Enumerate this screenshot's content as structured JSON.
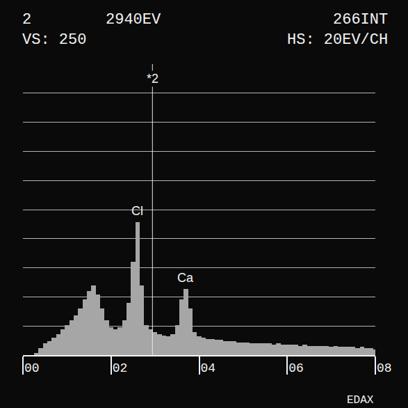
{
  "chart_data": {
    "type": "bar",
    "header": [
      [
        "2",
        "2940EV",
        "266INT"
      ],
      [
        "VS: 250",
        "HS: 20EV/CH"
      ]
    ],
    "footer": "EDAX",
    "x": [
      0,
      0.1,
      0.2,
      0.3,
      0.4,
      0.5,
      0.6,
      0.7,
      0.8,
      0.9,
      1,
      1.1,
      1.2,
      1.3,
      1.4,
      1.5,
      1.6,
      1.7,
      1.8,
      1.9,
      2,
      2.1,
      2.2,
      2.3,
      2.4,
      2.5,
      2.6,
      2.7,
      2.8,
      2.9,
      3,
      3.1,
      3.2,
      3.3,
      3.4,
      3.5,
      3.6,
      3.7,
      3.8,
      3.9,
      4,
      4.1,
      4.2,
      4.3,
      4.4,
      4.5,
      4.6,
      4.7,
      4.8,
      4.9,
      5,
      5.1,
      5.2,
      5.3,
      5.4,
      5.5,
      5.6,
      5.7,
      5.8,
      5.9,
      6,
      6.1,
      6.2,
      6.3,
      6.4,
      6.5,
      6.6,
      6.7,
      6.8,
      6.9,
      7,
      7.1,
      7.2,
      7.3,
      7.4,
      7.5,
      7.6,
      7.7,
      7.8,
      7.9,
      8
    ],
    "values": [
      0,
      0,
      0,
      2,
      6,
      10,
      12,
      15,
      18,
      22,
      26,
      30,
      34,
      40,
      48,
      55,
      60,
      52,
      40,
      30,
      24,
      22,
      24,
      30,
      45,
      80,
      114,
      60,
      26,
      22,
      20,
      18,
      17,
      16,
      18,
      26,
      48,
      57,
      40,
      20,
      16,
      15,
      14,
      14,
      13,
      13,
      12,
      12,
      12,
      11,
      11,
      11,
      10,
      10,
      10,
      10,
      10,
      9,
      10,
      9,
      9,
      9,
      9,
      8,
      9,
      8,
      8,
      8,
      8,
      8,
      7,
      8,
      7,
      7,
      7,
      7,
      6,
      7,
      6,
      6,
      5
    ],
    "color": "#a6a6a6",
    "xlim": [
      0,
      8
    ],
    "xticks": [
      {
        "value": 0,
        "label": "00"
      },
      {
        "value": 2,
        "label": "02"
      },
      {
        "value": 4,
        "label": "04"
      },
      {
        "value": 6,
        "label": "06"
      },
      {
        "value": 8,
        "label": "08"
      }
    ],
    "ylim": [
      0,
      250
    ],
    "yticks": [
      0,
      25,
      50,
      75,
      100,
      125,
      150,
      175,
      200,
      225,
      250
    ],
    "grid": true,
    "tick_labels": "x",
    "cursor": {
      "x": 2.94,
      "label": "*2"
    },
    "annotations": [
      {
        "text": "Cl",
        "x": 2.6,
        "y": 114
      },
      {
        "text": "Ca",
        "x": 3.7,
        "y": 57
      }
    ]
  }
}
